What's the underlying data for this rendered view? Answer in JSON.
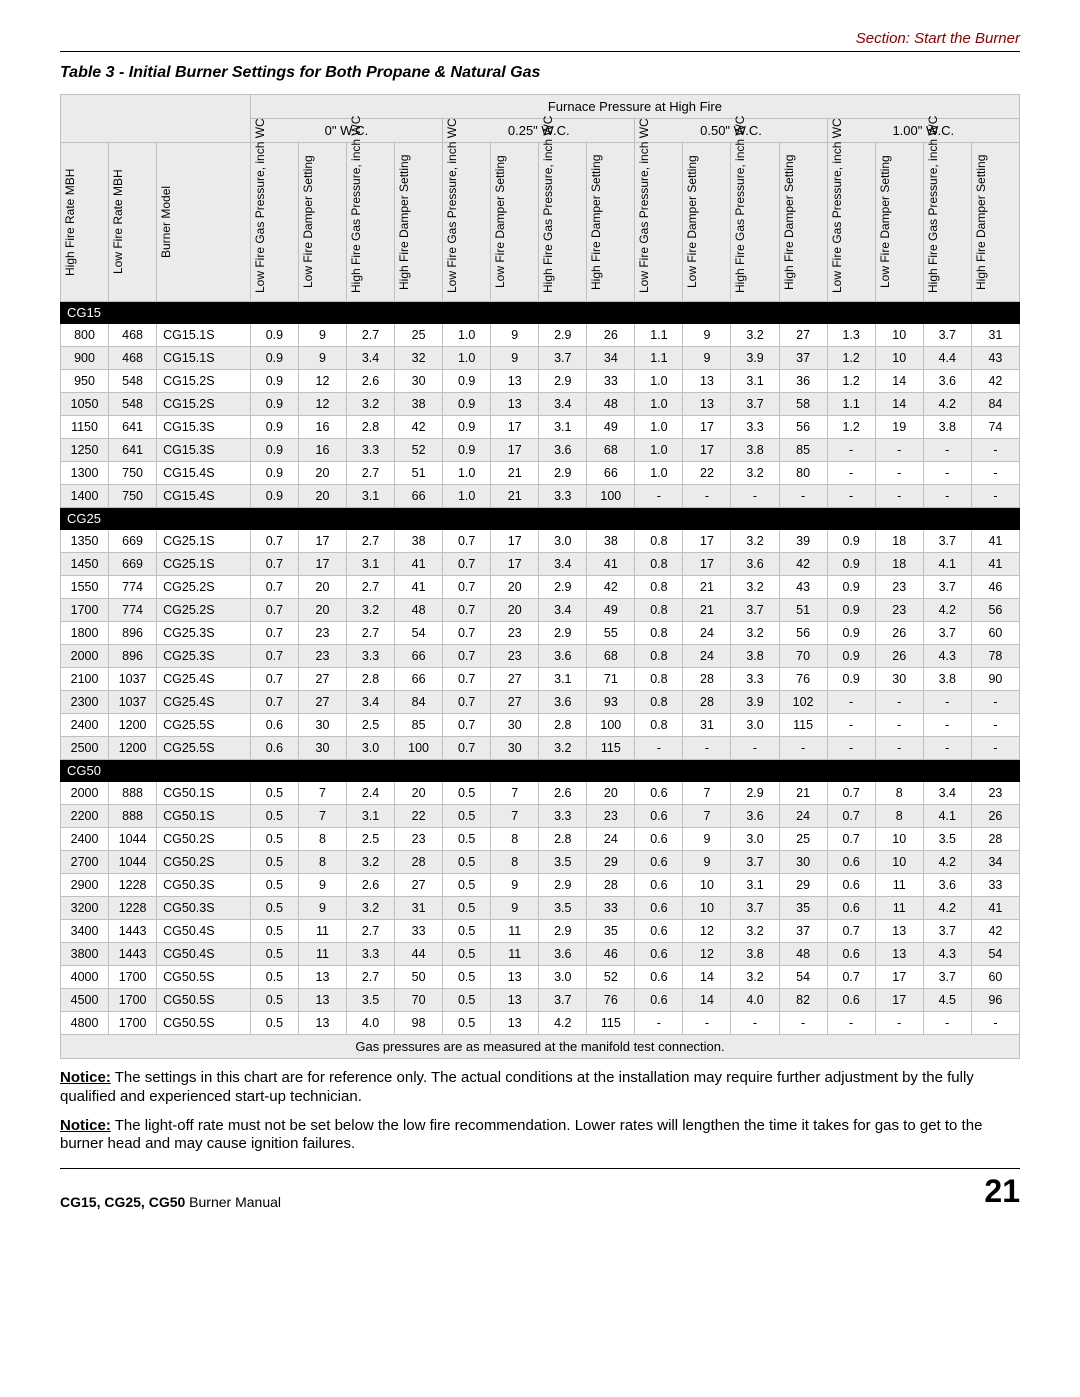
{
  "header": {
    "section": "Section: Start the Burner"
  },
  "table": {
    "title": "Table 3 - Initial Burner Settings for Both Propane & Natural Gas",
    "super_header": "Furnace Pressure at High Fire",
    "pressure_cols": [
      "0\" W.C.",
      "0.25\" W.C.",
      "0.50\" W.C.",
      "1.00\" W.C."
    ],
    "row_headers": {
      "high_rate": "High Fire Rate MBH",
      "low_rate": "Low Fire Rate MBH",
      "model": "Burner Model",
      "lf_gas": "Low Fire Gas Pressure, inch WC",
      "lf_damp": "Low Fire Damper Setting",
      "hf_gas": "High Fire Gas Pressure, inch WC",
      "hf_damp": "High Fire Damper Setting"
    },
    "groups": [
      {
        "name": "CG15",
        "rows": [
          [
            "800",
            "468",
            "CG15.1S",
            "0.9",
            "9",
            "2.7",
            "25",
            "1.0",
            "9",
            "2.9",
            "26",
            "1.1",
            "9",
            "3.2",
            "27",
            "1.3",
            "10",
            "3.7",
            "31"
          ],
          [
            "900",
            "468",
            "CG15.1S",
            "0.9",
            "9",
            "3.4",
            "32",
            "1.0",
            "9",
            "3.7",
            "34",
            "1.1",
            "9",
            "3.9",
            "37",
            "1.2",
            "10",
            "4.4",
            "43"
          ],
          [
            "950",
            "548",
            "CG15.2S",
            "0.9",
            "12",
            "2.6",
            "30",
            "0.9",
            "13",
            "2.9",
            "33",
            "1.0",
            "13",
            "3.1",
            "36",
            "1.2",
            "14",
            "3.6",
            "42"
          ],
          [
            "1050",
            "548",
            "CG15.2S",
            "0.9",
            "12",
            "3.2",
            "38",
            "0.9",
            "13",
            "3.4",
            "48",
            "1.0",
            "13",
            "3.7",
            "58",
            "1.1",
            "14",
            "4.2",
            "84"
          ],
          [
            "1150",
            "641",
            "CG15.3S",
            "0.9",
            "16",
            "2.8",
            "42",
            "0.9",
            "17",
            "3.1",
            "49",
            "1.0",
            "17",
            "3.3",
            "56",
            "1.2",
            "19",
            "3.8",
            "74"
          ],
          [
            "1250",
            "641",
            "CG15.3S",
            "0.9",
            "16",
            "3.3",
            "52",
            "0.9",
            "17",
            "3.6",
            "68",
            "1.0",
            "17",
            "3.8",
            "85",
            "-",
            "-",
            "-",
            "-"
          ],
          [
            "1300",
            "750",
            "CG15.4S",
            "0.9",
            "20",
            "2.7",
            "51",
            "1.0",
            "21",
            "2.9",
            "66",
            "1.0",
            "22",
            "3.2",
            "80",
            "-",
            "-",
            "-",
            "-"
          ],
          [
            "1400",
            "750",
            "CG15.4S",
            "0.9",
            "20",
            "3.1",
            "66",
            "1.0",
            "21",
            "3.3",
            "100",
            "-",
            "-",
            "-",
            "-",
            "-",
            "-",
            "-",
            "-"
          ]
        ]
      },
      {
        "name": "CG25",
        "rows": [
          [
            "1350",
            "669",
            "CG25.1S",
            "0.7",
            "17",
            "2.7",
            "38",
            "0.7",
            "17",
            "3.0",
            "38",
            "0.8",
            "17",
            "3.2",
            "39",
            "0.9",
            "18",
            "3.7",
            "41"
          ],
          [
            "1450",
            "669",
            "CG25.1S",
            "0.7",
            "17",
            "3.1",
            "41",
            "0.7",
            "17",
            "3.4",
            "41",
            "0.8",
            "17",
            "3.6",
            "42",
            "0.9",
            "18",
            "4.1",
            "41"
          ],
          [
            "1550",
            "774",
            "CG25.2S",
            "0.7",
            "20",
            "2.7",
            "41",
            "0.7",
            "20",
            "2.9",
            "42",
            "0.8",
            "21",
            "3.2",
            "43",
            "0.9",
            "23",
            "3.7",
            "46"
          ],
          [
            "1700",
            "774",
            "CG25.2S",
            "0.7",
            "20",
            "3.2",
            "48",
            "0.7",
            "20",
            "3.4",
            "49",
            "0.8",
            "21",
            "3.7",
            "51",
            "0.9",
            "23",
            "4.2",
            "56"
          ],
          [
            "1800",
            "896",
            "CG25.3S",
            "0.7",
            "23",
            "2.7",
            "54",
            "0.7",
            "23",
            "2.9",
            "55",
            "0.8",
            "24",
            "3.2",
            "56",
            "0.9",
            "26",
            "3.7",
            "60"
          ],
          [
            "2000",
            "896",
            "CG25.3S",
            "0.7",
            "23",
            "3.3",
            "66",
            "0.7",
            "23",
            "3.6",
            "68",
            "0.8",
            "24",
            "3.8",
            "70",
            "0.9",
            "26",
            "4.3",
            "78"
          ],
          [
            "2100",
            "1037",
            "CG25.4S",
            "0.7",
            "27",
            "2.8",
            "66",
            "0.7",
            "27",
            "3.1",
            "71",
            "0.8",
            "28",
            "3.3",
            "76",
            "0.9",
            "30",
            "3.8",
            "90"
          ],
          [
            "2300",
            "1037",
            "CG25.4S",
            "0.7",
            "27",
            "3.4",
            "84",
            "0.7",
            "27",
            "3.6",
            "93",
            "0.8",
            "28",
            "3.9",
            "102",
            "-",
            "-",
            "-",
            "-"
          ],
          [
            "2400",
            "1200",
            "CG25.5S",
            "0.6",
            "30",
            "2.5",
            "85",
            "0.7",
            "30",
            "2.8",
            "100",
            "0.8",
            "31",
            "3.0",
            "115",
            "-",
            "-",
            "-",
            "-"
          ],
          [
            "2500",
            "1200",
            "CG25.5S",
            "0.6",
            "30",
            "3.0",
            "100",
            "0.7",
            "30",
            "3.2",
            "115",
            "-",
            "-",
            "-",
            "-",
            "-",
            "-",
            "-",
            "-"
          ]
        ]
      },
      {
        "name": "CG50",
        "rows": [
          [
            "2000",
            "888",
            "CG50.1S",
            "0.5",
            "7",
            "2.4",
            "20",
            "0.5",
            "7",
            "2.6",
            "20",
            "0.6",
            "7",
            "2.9",
            "21",
            "0.7",
            "8",
            "3.4",
            "23"
          ],
          [
            "2200",
            "888",
            "CG50.1S",
            "0.5",
            "7",
            "3.1",
            "22",
            "0.5",
            "7",
            "3.3",
            "23",
            "0.6",
            "7",
            "3.6",
            "24",
            "0.7",
            "8",
            "4.1",
            "26"
          ],
          [
            "2400",
            "1044",
            "CG50.2S",
            "0.5",
            "8",
            "2.5",
            "23",
            "0.5",
            "8",
            "2.8",
            "24",
            "0.6",
            "9",
            "3.0",
            "25",
            "0.7",
            "10",
            "3.5",
            "28"
          ],
          [
            "2700",
            "1044",
            "CG50.2S",
            "0.5",
            "8",
            "3.2",
            "28",
            "0.5",
            "8",
            "3.5",
            "29",
            "0.6",
            "9",
            "3.7",
            "30",
            "0.6",
            "10",
            "4.2",
            "34"
          ],
          [
            "2900",
            "1228",
            "CG50.3S",
            "0.5",
            "9",
            "2.6",
            "27",
            "0.5",
            "9",
            "2.9",
            "28",
            "0.6",
            "10",
            "3.1",
            "29",
            "0.6",
            "11",
            "3.6",
            "33"
          ],
          [
            "3200",
            "1228",
            "CG50.3S",
            "0.5",
            "9",
            "3.2",
            "31",
            "0.5",
            "9",
            "3.5",
            "33",
            "0.6",
            "10",
            "3.7",
            "35",
            "0.6",
            "11",
            "4.2",
            "41"
          ],
          [
            "3400",
            "1443",
            "CG50.4S",
            "0.5",
            "11",
            "2.7",
            "33",
            "0.5",
            "11",
            "2.9",
            "35",
            "0.6",
            "12",
            "3.2",
            "37",
            "0.7",
            "13",
            "3.7",
            "42"
          ],
          [
            "3800",
            "1443",
            "CG50.4S",
            "0.5",
            "11",
            "3.3",
            "44",
            "0.5",
            "11",
            "3.6",
            "46",
            "0.6",
            "12",
            "3.8",
            "48",
            "0.6",
            "13",
            "4.3",
            "54"
          ],
          [
            "4000",
            "1700",
            "CG50.5S",
            "0.5",
            "13",
            "2.7",
            "50",
            "0.5",
            "13",
            "3.0",
            "52",
            "0.6",
            "14",
            "3.2",
            "54",
            "0.7",
            "17",
            "3.7",
            "60"
          ],
          [
            "4500",
            "1700",
            "CG50.5S",
            "0.5",
            "13",
            "3.5",
            "70",
            "0.5",
            "13",
            "3.7",
            "76",
            "0.6",
            "14",
            "4.0",
            "82",
            "0.6",
            "17",
            "4.5",
            "96"
          ],
          [
            "4800",
            "1700",
            "CG50.5S",
            "0.5",
            "13",
            "4.0",
            "98",
            "0.5",
            "13",
            "4.2",
            "115",
            "-",
            "-",
            "-",
            "-",
            "-",
            "-",
            "-",
            "-"
          ]
        ]
      }
    ],
    "footnote": "Gas pressures are as measured at the manifold test connection."
  },
  "notices": [
    {
      "label": "Notice:",
      "text": " The settings in this chart are for reference only. The actual conditions at the installation may require further adjustment by the fully qualified and experienced start-up technician."
    },
    {
      "label": "Notice:",
      "text": " The light-off rate must not be set below the low fire recommendation.  Lower rates will lengthen the time it takes for gas to get to the burner head and may cause ignition failures."
    }
  ],
  "footer": {
    "manual_bold": "CG15, CG25, CG50",
    "manual_rest": " Burner Manual",
    "page": "21"
  }
}
